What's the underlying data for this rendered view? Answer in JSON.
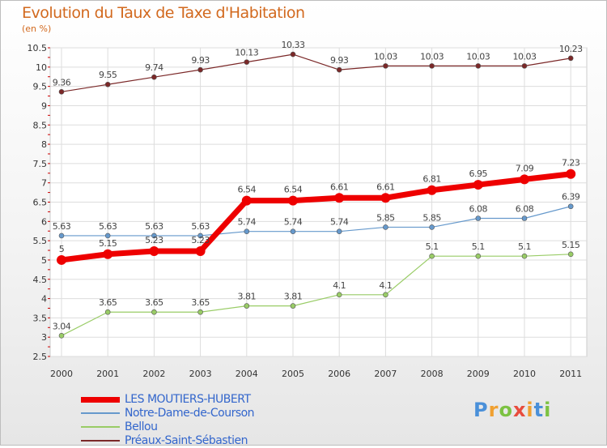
{
  "title": "Evolution du Taux de Taxe d'Habitation",
  "subtitle": "(en %)",
  "logo_text": "Proxiti",
  "chart_data": {
    "type": "line",
    "title": "Evolution du Taux de Taxe d'Habitation",
    "ylabel": "(en %)",
    "x": [
      "2000",
      "2001",
      "2002",
      "2003",
      "2004",
      "2005",
      "2006",
      "2007",
      "2008",
      "2009",
      "2010",
      "2011"
    ],
    "ylim": [
      2.5,
      10.5
    ],
    "yticks": [
      "2.5",
      "3",
      "3.5",
      "4",
      "4.5",
      "5",
      "5.5",
      "6",
      "6.5",
      "7",
      "7.5",
      "8",
      "8.5",
      "9",
      "9.5",
      "10",
      "10.5"
    ],
    "grid": true,
    "legend_position": "bottom-left",
    "series": [
      {
        "name": "Préaux-Saint-Sébastien",
        "color": "#7b2828",
        "values": [
          9.36,
          9.55,
          9.74,
          9.93,
          10.13,
          10.33,
          9.93,
          10.03,
          10.03,
          10.03,
          10.03,
          10.23
        ],
        "labels": [
          "9.36",
          "9.55",
          "9.74",
          "9.93",
          "10.13",
          "10.33",
          "9.93",
          "10.03",
          "10.03",
          "10.03",
          "10.03",
          "10.23"
        ],
        "width": 1.2,
        "marker": 3
      },
      {
        "name": "Notre-Dame-de-Courson",
        "color": "#6699cc",
        "values": [
          5.63,
          5.63,
          5.63,
          5.63,
          5.74,
          5.74,
          5.74,
          5.85,
          5.85,
          6.08,
          6.08,
          6.39
        ],
        "labels": [
          "5.63",
          "5.63",
          "5.63",
          "5.63",
          "5.74",
          "5.74",
          "5.74",
          "5.85",
          "5.85",
          "6.08",
          "6.08",
          "6.39"
        ],
        "width": 1.2,
        "marker": 3
      },
      {
        "name": "Bellou",
        "color": "#99cc66",
        "values": [
          3.04,
          3.65,
          3.65,
          3.65,
          3.81,
          3.81,
          4.1,
          4.1,
          5.1,
          5.1,
          5.1,
          5.15
        ],
        "labels": [
          "3.04",
          "3.65",
          "3.65",
          "3.65",
          "3.81",
          "3.81",
          "4.1",
          "4.1",
          "5.1",
          "5.1",
          "5.1",
          "5.15"
        ],
        "width": 1.2,
        "marker": 3
      },
      {
        "name": "LES MOUTIERS-HUBERT",
        "color": "#ee0000",
        "values": [
          5,
          5.15,
          5.23,
          5.23,
          6.54,
          6.54,
          6.61,
          6.61,
          6.81,
          6.95,
          7.09,
          7.23
        ],
        "labels": [
          "5",
          "5.15",
          "5.23",
          "5.23",
          "6.54",
          "6.54",
          "6.61",
          "6.61",
          "6.81",
          "6.95",
          "7.09",
          "7.23"
        ],
        "width": 7,
        "marker": 6
      }
    ],
    "legend": [
      {
        "name": "LES MOUTIERS-HUBERT",
        "color": "#ee0000",
        "width": 7
      },
      {
        "name": "Notre-Dame-de-Courson",
        "color": "#6699cc",
        "width": 2
      },
      {
        "name": "Bellou",
        "color": "#99cc66",
        "width": 2
      },
      {
        "name": "Préaux-Saint-Sébastien",
        "color": "#7b2828",
        "width": 2
      }
    ]
  }
}
